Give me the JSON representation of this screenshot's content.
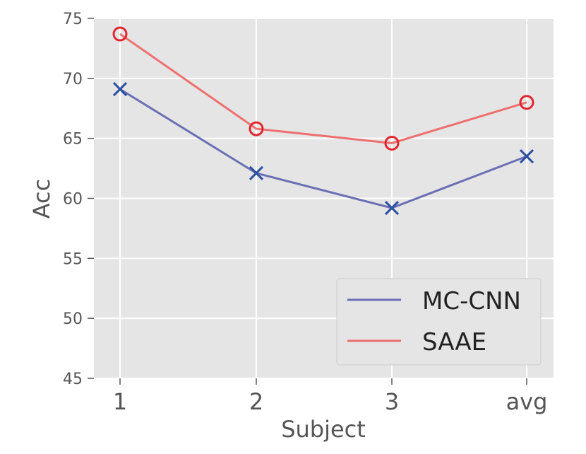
{
  "chart_data": {
    "type": "line",
    "title": "",
    "xlabel": "Subject",
    "ylabel": "Acc",
    "categories": [
      "1",
      "2",
      "3",
      "avg"
    ],
    "ylim": [
      45,
      75
    ],
    "yticks": [
      45,
      50,
      55,
      60,
      65,
      70,
      75
    ],
    "grid": true,
    "legend_position": "bottom-right",
    "series": [
      {
        "name": "MC-CNN",
        "values": [
          69.1,
          62.1,
          59.2,
          63.5
        ],
        "color": "#6b6fb4",
        "marker_color": "#2a4ea0",
        "marker": "x"
      },
      {
        "name": "SAAE",
        "values": [
          73.7,
          65.8,
          64.6,
          68.0
        ],
        "color": "#ee6f6f",
        "marker_color": "#e0262e",
        "marker": "circle"
      }
    ]
  }
}
